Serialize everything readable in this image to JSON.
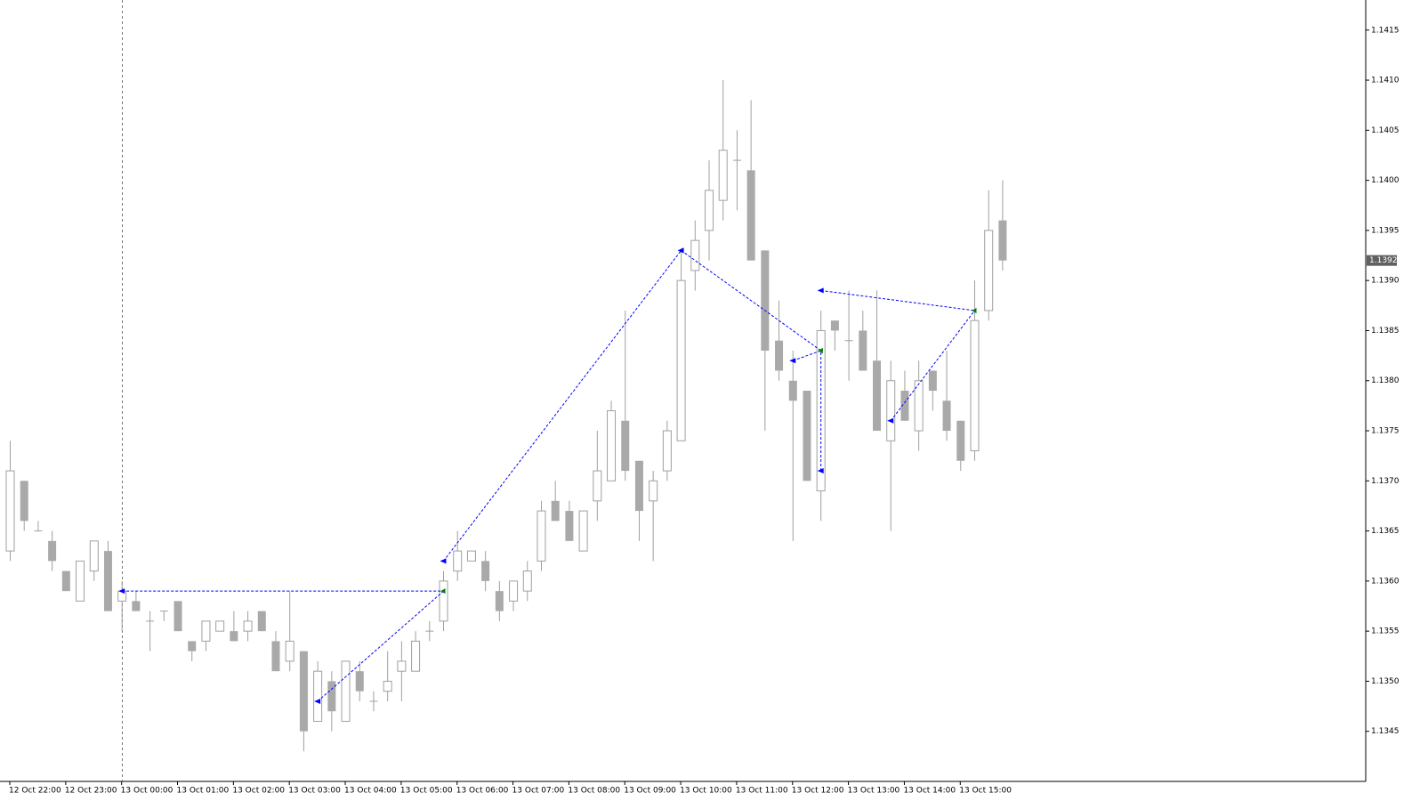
{
  "chart_data": {
    "type": "candlestick",
    "x": [
      "12 Oct 22:00",
      null,
      null,
      null,
      "12 Oct 23:00",
      null,
      null,
      null,
      "13 Oct 00:00",
      null,
      null,
      null,
      "13 Oct 01:00",
      null,
      null,
      null,
      "13 Oct 02:00",
      null,
      null,
      null,
      "13 Oct 03:00",
      null,
      null,
      null,
      "13 Oct 04:00",
      null,
      null,
      null,
      "13 Oct 05:00",
      null,
      null,
      null,
      "13 Oct 06:00",
      null,
      null,
      null,
      "13 Oct 07:00",
      null,
      null,
      null,
      "13 Oct 08:00",
      null,
      null,
      null,
      "13 Oct 09:00",
      null,
      null,
      null,
      "13 Oct 10:00",
      null,
      null,
      null,
      "13 Oct 11:00",
      null,
      null,
      null,
      "13 Oct 12:00",
      null,
      null,
      null,
      "13 Oct 13:00",
      null,
      null,
      null,
      "13 Oct 14:00",
      null,
      null,
      null,
      "13 Oct 15:00",
      null,
      null,
      null
    ],
    "open": [
      1.1363,
      1.137,
      1.1365,
      1.1364,
      1.1361,
      1.1358,
      1.1361,
      1.1363,
      1.1358,
      1.1358,
      1.1356,
      1.1357,
      1.1358,
      1.1354,
      1.1354,
      1.1355,
      1.1355,
      1.1355,
      1.1357,
      1.1354,
      1.1352,
      1.1353,
      1.1346,
      1.135,
      1.1346,
      1.1351,
      1.1348,
      1.1349,
      1.1351,
      1.1351,
      1.1355,
      1.1356,
      1.1361,
      1.1362,
      1.1362,
      1.1359,
      1.1358,
      1.1359,
      1.1362,
      1.1368,
      1.1367,
      1.1363,
      1.1368,
      1.137,
      1.1376,
      1.1372,
      1.1368,
      1.1371,
      1.1374,
      1.1391,
      1.1395,
      1.1398,
      1.1402,
      1.1401,
      1.1393,
      1.1384,
      1.138,
      1.1379,
      1.1369,
      1.1386,
      1.1384,
      1.1385,
      1.1382,
      1.1374,
      1.1379,
      1.1375,
      1.1381,
      1.1378,
      1.1376,
      1.1373,
      1.1387,
      1.1396
    ],
    "high": [
      1.1374,
      1.137,
      1.1366,
      1.1365,
      1.1361,
      1.1362,
      1.1364,
      1.1364,
      1.136,
      1.1359,
      1.1357,
      1.1357,
      1.1358,
      1.1354,
      1.1356,
      1.1356,
      1.1357,
      1.1357,
      1.1357,
      1.1355,
      1.1359,
      1.1353,
      1.1352,
      1.1351,
      1.1352,
      1.1352,
      1.1349,
      1.1353,
      1.1354,
      1.1355,
      1.1356,
      1.1361,
      1.1365,
      1.1363,
      1.1363,
      1.136,
      1.136,
      1.1362,
      1.1368,
      1.137,
      1.1368,
      1.1367,
      1.1375,
      1.1378,
      1.1387,
      1.1372,
      1.1371,
      1.1376,
      1.1393,
      1.1396,
      1.1402,
      1.141,
      1.1405,
      1.1408,
      1.1393,
      1.1388,
      1.1383,
      1.1379,
      1.1387,
      1.1386,
      1.1389,
      1.1387,
      1.1389,
      1.1382,
      1.1381,
      1.1382,
      1.1381,
      1.1383,
      1.1376,
      1.139,
      1.1399,
      1.14
    ],
    "low": [
      1.1362,
      1.1365,
      1.1365,
      1.1361,
      1.1359,
      1.1358,
      1.136,
      1.1357,
      1.1355,
      1.1357,
      1.1353,
      1.1356,
      1.1355,
      1.1352,
      1.1353,
      1.1355,
      1.1354,
      1.1354,
      1.1355,
      1.1351,
      1.1351,
      1.1343,
      1.1346,
      1.1345,
      1.1346,
      1.1348,
      1.1347,
      1.1348,
      1.1348,
      1.1351,
      1.1354,
      1.1355,
      1.136,
      1.1362,
      1.1359,
      1.1356,
      1.1357,
      1.1358,
      1.1361,
      1.1366,
      1.1364,
      1.1363,
      1.1366,
      1.137,
      1.137,
      1.1364,
      1.1362,
      1.137,
      1.1374,
      1.1389,
      1.1392,
      1.1396,
      1.1397,
      1.1392,
      1.1375,
      1.138,
      1.1364,
      1.137,
      1.1366,
      1.1383,
      1.138,
      1.1381,
      1.1375,
      1.1365,
      1.1376,
      1.1373,
      1.1377,
      1.1374,
      1.1371,
      1.1372,
      1.1386,
      1.1391
    ],
    "close": [
      1.1371,
      1.1366,
      1.1365,
      1.1362,
      1.1359,
      1.1362,
      1.1364,
      1.1357,
      1.1359,
      1.1357,
      1.1356,
      1.1357,
      1.1355,
      1.1353,
      1.1356,
      1.1356,
      1.1354,
      1.1356,
      1.1355,
      1.1351,
      1.1354,
      1.1345,
      1.1351,
      1.1347,
      1.1352,
      1.1349,
      1.1348,
      1.135,
      1.1352,
      1.1354,
      1.1355,
      1.136,
      1.1363,
      1.1363,
      1.136,
      1.1357,
      1.136,
      1.1361,
      1.1367,
      1.1366,
      1.1364,
      1.1367,
      1.1371,
      1.1377,
      1.1371,
      1.1367,
      1.137,
      1.1375,
      1.139,
      1.1394,
      1.1399,
      1.1403,
      1.1402,
      1.1392,
      1.1383,
      1.1381,
      1.1378,
      1.137,
      1.1385,
      1.1385,
      1.1384,
      1.1381,
      1.1375,
      1.138,
      1.1376,
      1.138,
      1.1379,
      1.1375,
      1.1372,
      1.1386,
      1.1395,
      1.1392
    ],
    "ylim": [
      1.134,
      1.1418
    ],
    "yticks": [
      1.1345,
      {
        "value": 1.135,
        "label": "1.1350"
      },
      1.1355,
      {
        "value": 1.136,
        "label": "1.1360"
      },
      1.1365,
      {
        "value": 1.137,
        "label": "1.1370"
      },
      1.1375,
      {
        "value": 1.138,
        "label": "1.1380"
      },
      1.1385,
      {
        "value": 1.139,
        "label": "1.1390"
      },
      1.1395,
      {
        "value": 1.14,
        "label": "1.1400"
      },
      1.1405,
      {
        "value": 1.141,
        "label": "1.1410"
      },
      1.1415
    ],
    "last_price": 1.1392,
    "bull_color": "#ffffff",
    "bear_color": "#a9a9a9",
    "wick_color": "#a0a0a0",
    "trade_color": "#0000ff",
    "close_marker_color": "#008000",
    "trades": [
      {
        "x": [
          8,
          31
        ],
        "y": [
          1.1359,
          1.1359
        ]
      },
      {
        "x": [
          22,
          31
        ],
        "y": [
          1.1348,
          1.1359
        ]
      },
      {
        "x": [
          31,
          48
        ],
        "y": [
          1.1362,
          1.1393
        ]
      },
      {
        "x": [
          48,
          58
        ],
        "y": [
          1.1393,
          1.1383
        ]
      },
      {
        "x": [
          56,
          58
        ],
        "y": [
          1.1382,
          1.1383
        ]
      },
      {
        "x": [
          58,
          58
        ],
        "y": [
          1.1371,
          1.1383
        ]
      },
      {
        "x": [
          58,
          69
        ],
        "y": [
          1.1389,
          1.1387
        ]
      },
      {
        "x": [
          63,
          69
        ],
        "y": [
          1.1376,
          1.1387
        ]
      }
    ]
  }
}
